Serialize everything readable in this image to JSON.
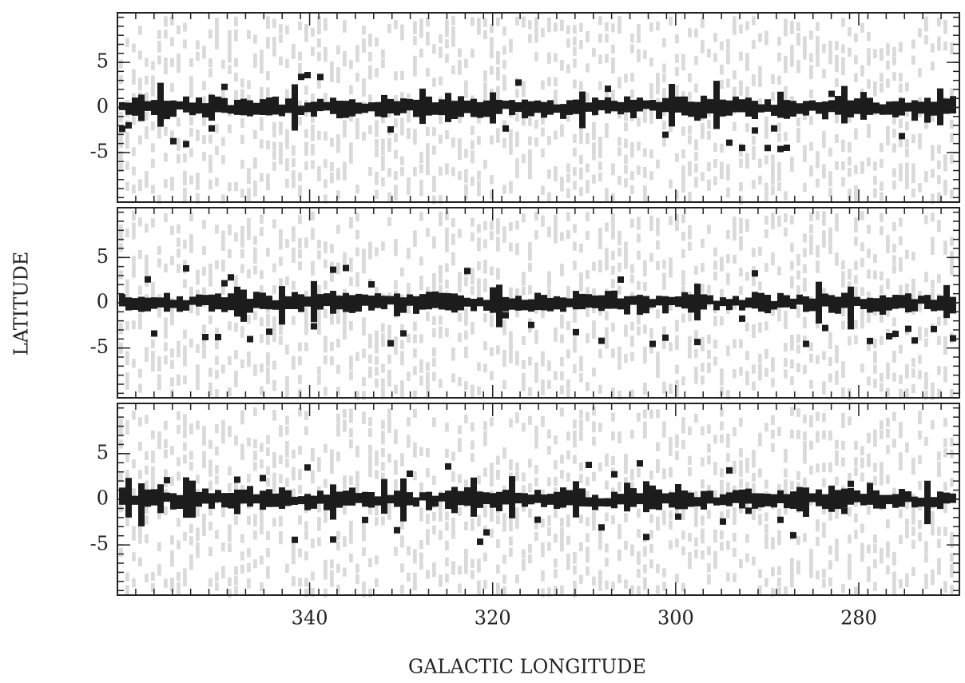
{
  "chart_data": [
    {
      "type": "heatmap",
      "xlim": [
        361,
        269
      ],
      "ylim": [
        -10.5,
        10.5
      ],
      "yticks": [
        -5,
        0,
        5
      ],
      "xticks": [
        340,
        320,
        300,
        280
      ]
    },
    {
      "type": "heatmap",
      "xlim": [
        361,
        269
      ],
      "ylim": [
        -10.5,
        10.5
      ],
      "yticks": [
        -5,
        0,
        5
      ],
      "xticks": [
        340,
        320,
        300,
        280
      ],
      "ylabel": "LATITUDE"
    },
    {
      "type": "heatmap",
      "xlim": [
        361,
        269
      ],
      "ylim": [
        -10.5,
        10.5
      ],
      "yticks": [
        -5,
        0,
        5
      ],
      "xticks": [
        340,
        320,
        300,
        280
      ],
      "xlabel": "GALACTIC LONGITUDE"
    }
  ]
}
